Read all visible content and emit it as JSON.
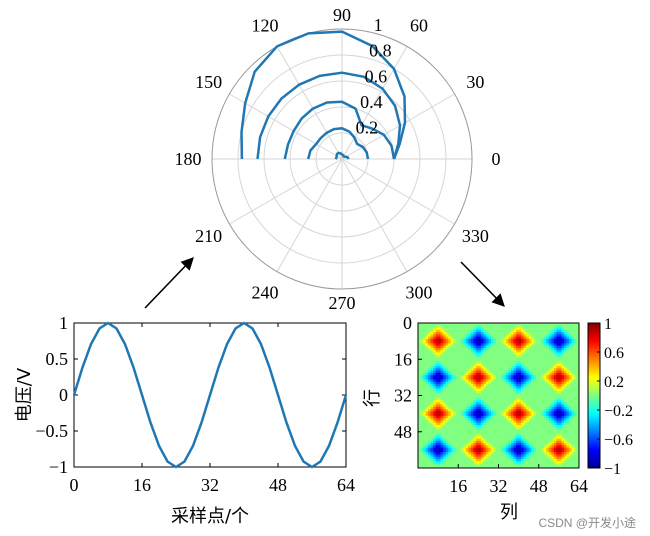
{
  "colors": {
    "line": "#1f77b4",
    "grid": "#d6d6d6",
    "axis": "#000000"
  },
  "watermark": "CSDN @开发小途",
  "chart_data": [
    {
      "type": "line",
      "subtype": "polar",
      "theta_ticks": [
        "0",
        "30",
        "60",
        "90",
        "120",
        "150",
        "180",
        "210",
        "240",
        "270",
        "300",
        "330"
      ],
      "r_ticks": [
        "0.2",
        "0.4",
        "0.6",
        "0.8",
        "1"
      ],
      "rlim": [
        0,
        1
      ],
      "grid": true,
      "series": [
        {
          "points": [
            [
              0,
              0.05
            ],
            [
              15,
              0.046
            ],
            [
              30,
              0.036
            ],
            [
              45,
              0.026
            ],
            [
              60,
              0.024
            ],
            [
              75,
              0.031
            ],
            [
              90,
              0.036
            ],
            [
              105,
              0.045
            ],
            [
              120,
              0.054
            ],
            [
              135,
              0.054
            ],
            [
              150,
              0.047
            ],
            [
              165,
              0.044
            ],
            [
              180,
              0.05
            ]
          ]
        },
        {
          "points": [
            [
              0,
              0.2
            ],
            [
              15,
              0.197
            ],
            [
              30,
              0.185
            ],
            [
              45,
              0.164
            ],
            [
              60,
              0.19
            ],
            [
              75,
              0.218
            ],
            [
              90,
              0.236
            ],
            [
              105,
              0.238
            ],
            [
              120,
              0.234
            ],
            [
              135,
              0.229
            ],
            [
              150,
              0.23
            ],
            [
              165,
              0.252
            ],
            [
              180,
              0.26
            ]
          ]
        },
        {
          "points": [
            [
              0,
              0.4
            ],
            [
              15,
              0.394
            ],
            [
              30,
              0.372
            ],
            [
              45,
              0.33
            ],
            [
              60,
              0.3
            ],
            [
              75,
              0.401
            ],
            [
              90,
              0.44
            ],
            [
              105,
              0.45
            ],
            [
              120,
              0.448
            ],
            [
              135,
              0.44
            ],
            [
              150,
              0.43
            ],
            [
              165,
              0.43
            ],
            [
              180,
              0.44
            ]
          ]
        },
        {
          "points": [
            [
              0,
              0.4
            ],
            [
              15,
              0.448
            ],
            [
              30,
              0.515
            ],
            [
              45,
              0.578
            ],
            [
              60,
              0.624
            ],
            [
              75,
              0.655
            ],
            [
              90,
              0.664
            ],
            [
              105,
              0.662
            ],
            [
              120,
              0.66
            ],
            [
              135,
              0.658
            ],
            [
              150,
              0.655
            ],
            [
              165,
              0.652
            ],
            [
              180,
              0.65
            ]
          ]
        },
        {
          "points": [
            [
              0,
              0.4
            ],
            [
              15,
              0.46
            ],
            [
              30,
              0.56
            ],
            [
              45,
              0.68
            ],
            [
              60,
              0.8
            ],
            [
              75,
              0.9
            ],
            [
              90,
              0.98
            ],
            [
              105,
              1.0
            ],
            [
              120,
              1.0
            ],
            [
              135,
              0.95
            ],
            [
              150,
              0.86
            ],
            [
              165,
              0.8
            ],
            [
              180,
              0.77
            ]
          ]
        }
      ]
    },
    {
      "type": "line",
      "xlabel": "采样点/个",
      "ylabel": "电压/V",
      "xlim": [
        0,
        64
      ],
      "ylim": [
        -1,
        1
      ],
      "xticks": [
        "0",
        "16",
        "32",
        "48",
        "64"
      ],
      "yticks": [
        "-1",
        "-0.5",
        "0",
        "0.5",
        "1"
      ],
      "grid": false,
      "series": [
        {
          "x": [
            0,
            2,
            4,
            6,
            8,
            10,
            12,
            14,
            16,
            18,
            20,
            22,
            24,
            26,
            28,
            30,
            32,
            34,
            36,
            38,
            40,
            42,
            44,
            46,
            48,
            50,
            52,
            54,
            56,
            58,
            60,
            62,
            64
          ],
          "values": [
            0,
            0.383,
            0.707,
            0.924,
            1,
            0.924,
            0.707,
            0.383,
            0,
            -0.383,
            -0.707,
            -0.924,
            -1,
            -0.924,
            -0.707,
            -0.383,
            0,
            0.383,
            0.707,
            0.924,
            1,
            0.924,
            0.707,
            0.383,
            0,
            -0.383,
            -0.707,
            -0.924,
            -1,
            -0.924,
            -0.707,
            -0.383,
            0
          ]
        }
      ]
    },
    {
      "type": "heatmap",
      "xlabel": "列",
      "ylabel": "行",
      "xlim": [
        0,
        64
      ],
      "ylim": [
        0,
        64
      ],
      "xticks": [
        "16",
        "32",
        "48",
        "64"
      ],
      "yticks": [
        "0",
        "16",
        "32",
        "48"
      ],
      "clim": [
        -1,
        1
      ],
      "colorbar_ticks": [
        "1",
        "0.6",
        "0.2",
        "−0.2",
        "−0.6",
        "−1"
      ],
      "colormap": "jet",
      "peaks": [
        [
          8,
          8
        ],
        [
          40,
          8
        ],
        [
          24,
          24
        ],
        [
          56,
          24
        ],
        [
          8,
          40
        ],
        [
          40,
          40
        ],
        [
          24,
          56
        ],
        [
          56,
          56
        ]
      ],
      "troughs": [
        [
          24,
          8
        ],
        [
          56,
          8
        ],
        [
          8,
          24
        ],
        [
          40,
          24
        ],
        [
          24,
          40
        ],
        [
          56,
          40
        ],
        [
          8,
          56
        ],
        [
          40,
          56
        ]
      ]
    }
  ]
}
